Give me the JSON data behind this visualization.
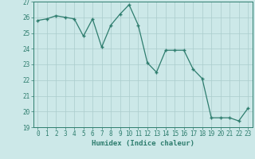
{
  "xlabel": "Humidex (Indice chaleur)",
  "x": [
    0,
    1,
    2,
    3,
    4,
    5,
    6,
    7,
    8,
    9,
    10,
    11,
    12,
    13,
    14,
    15,
    16,
    17,
    18,
    19,
    20,
    21,
    22,
    23
  ],
  "y": [
    25.8,
    25.9,
    26.1,
    26.0,
    25.9,
    24.8,
    25.9,
    24.1,
    25.5,
    26.2,
    26.8,
    25.5,
    23.1,
    22.5,
    23.9,
    23.9,
    23.9,
    22.7,
    22.1,
    19.6,
    19.6,
    19.6,
    19.4,
    20.2
  ],
  "line_color": "#2e7d6e",
  "marker": "+",
  "markersize": 3.5,
  "markeredgewidth": 1.0,
  "linewidth": 0.9,
  "bg_color": "#cce8e8",
  "grid_color": "#aacccc",
  "tick_color": "#2e7d6e",
  "label_color": "#2e7d6e",
  "ylim": [
    19,
    27
  ],
  "xlim": [
    -0.5,
    23.5
  ],
  "yticks": [
    19,
    20,
    21,
    22,
    23,
    24,
    25,
    26,
    27
  ],
  "xticks": [
    0,
    1,
    2,
    3,
    4,
    5,
    6,
    7,
    8,
    9,
    10,
    11,
    12,
    13,
    14,
    15,
    16,
    17,
    18,
    19,
    20,
    21,
    22,
    23
  ],
  "tick_fontsize": 5.5,
  "xlabel_fontsize": 6.5
}
